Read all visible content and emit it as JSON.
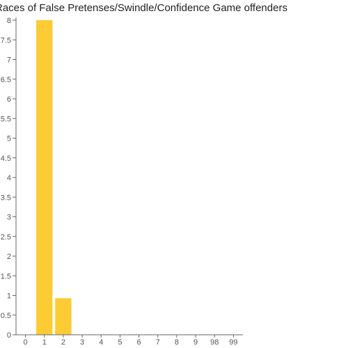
{
  "chart_data": {
    "type": "bar",
    "title": "Races of False Pretenses/Swindle/Confidence Game offenders",
    "xlabel": "",
    "ylabel": "",
    "categories": [
      "0",
      "1",
      "2",
      "3",
      "4",
      "5",
      "6",
      "7",
      "8",
      "9",
      "98",
      "99"
    ],
    "values": [
      0,
      8,
      0.93,
      0,
      0,
      0,
      0,
      0,
      0,
      0,
      0,
      0
    ],
    "ylim": [
      0,
      8
    ],
    "yticks": [
      0,
      0.5,
      1,
      1.5,
      2,
      2.5,
      3,
      3.5,
      4,
      4.5,
      5,
      5.5,
      6,
      6.5,
      7,
      7.5,
      8
    ],
    "ytick_labels": [
      "0",
      "0.5",
      "1",
      "1.5",
      "2",
      "2.5",
      "3",
      "3.5",
      "4",
      "4.5",
      "5",
      "5.5",
      "6",
      "6.5",
      "7",
      "7.5",
      "8"
    ],
    "grid": false,
    "bar_color": "#fdcb33",
    "axis_color": "#666666"
  }
}
